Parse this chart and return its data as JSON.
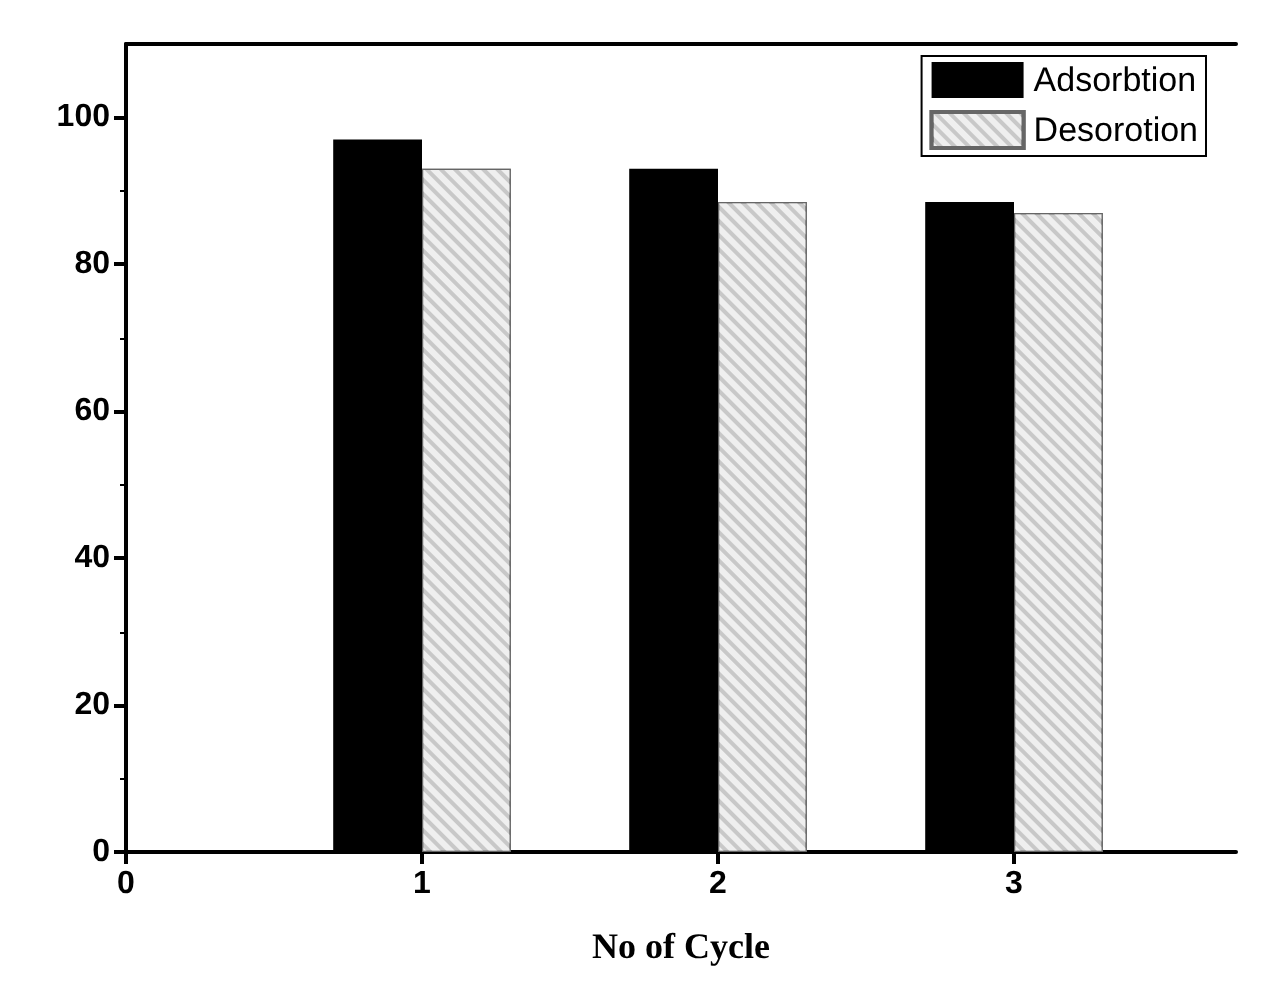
{
  "chart_data": {
    "type": "bar",
    "xlabel": "No of Cycle",
    "x": [
      1,
      2,
      3
    ],
    "series": [
      {
        "name": "Adsorbtion",
        "color": "#000000",
        "values": [
          97,
          93,
          88.5
        ]
      },
      {
        "name": "Desorotion",
        "color": "#c8c8c8",
        "values": [
          93,
          88.5,
          87
        ]
      }
    ],
    "xlim": [
      0,
      3.75
    ],
    "xticks": [
      0,
      1,
      2,
      3
    ],
    "ylim": [
      0,
      110
    ],
    "yticks": [
      0,
      20,
      40,
      60,
      80,
      100
    ],
    "grid": false,
    "legend": "top right"
  }
}
